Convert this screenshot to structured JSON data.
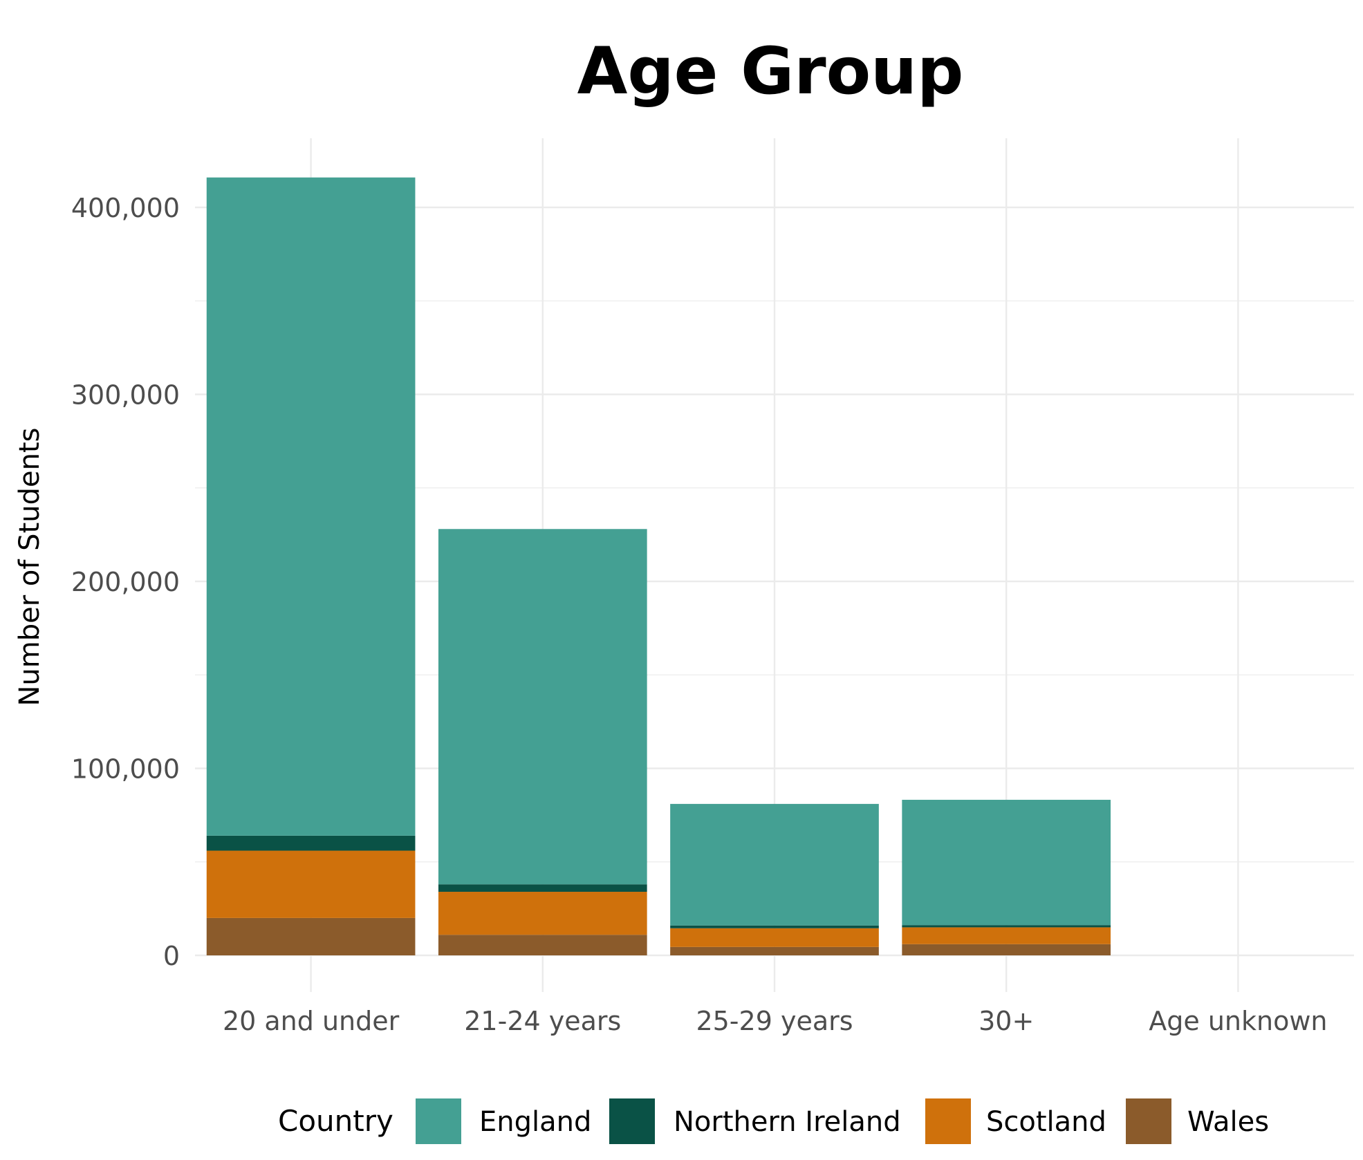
{
  "chart_data": {
    "type": "bar",
    "stacked": true,
    "title": "Age Group",
    "xlabel": "",
    "ylabel": "Number of Students",
    "ylim": [
      -13000,
      440000
    ],
    "yticks": [
      0,
      100000,
      200000,
      300000,
      400000
    ],
    "ytick_labels": [
      "0",
      "100,000",
      "200,000",
      "300,000",
      "400,000"
    ],
    "grid": true,
    "categories": [
      "20 and under",
      "21-24 years",
      "25-29 years",
      "30+",
      "Age unknown"
    ],
    "stack_order": [
      "Wales",
      "Scotland",
      "Northern Ireland",
      "England"
    ],
    "series": [
      {
        "name": "England",
        "color": "#44a093",
        "values": [
          352000,
          190000,
          65000,
          67000,
          0
        ]
      },
      {
        "name": "Northern Ireland",
        "color": "#0a5246",
        "values": [
          8000,
          4000,
          1500,
          1200,
          0
        ]
      },
      {
        "name": "Scotland",
        "color": "#cf710c",
        "values": [
          36000,
          23000,
          10000,
          9000,
          0
        ]
      },
      {
        "name": "Wales",
        "color": "#8b5b2b",
        "values": [
          20000,
          11000,
          4500,
          6000,
          0
        ]
      }
    ],
    "legend": {
      "title": "Country",
      "placement": "bottom",
      "entries": [
        "England",
        "Northern Ireland",
        "Scotland",
        "Wales"
      ]
    }
  }
}
